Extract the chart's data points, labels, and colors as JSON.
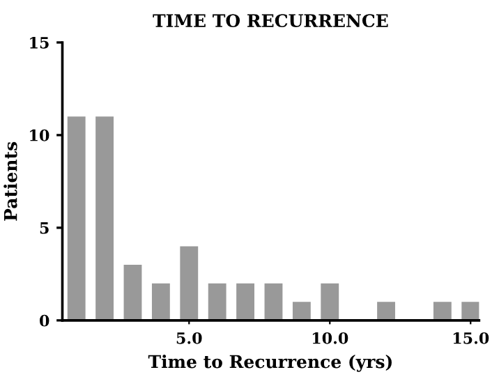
{
  "chart_data": {
    "type": "bar",
    "title": "TIME TO RECURRENCE",
    "xlabel": "Time to Recurrence (yrs)",
    "ylabel": "Patients",
    "x": [
      1,
      2,
      3,
      4,
      5,
      6,
      7,
      8,
      9,
      10,
      11,
      12,
      13,
      14,
      15
    ],
    "values": [
      11,
      11,
      3,
      2,
      4,
      2,
      2,
      2,
      1,
      2,
      0,
      1,
      0,
      1,
      1
    ],
    "color": "#999999",
    "xlim": [
      0.5,
      15.3
    ],
    "xticks": [
      {
        "value": 5,
        "label": "5.0"
      },
      {
        "value": 10,
        "label": "10.0"
      },
      {
        "value": 15,
        "label": "15.0"
      }
    ],
    "ylim": [
      0,
      15
    ],
    "yticks": [
      0,
      5,
      10,
      15
    ],
    "grid": false
  }
}
